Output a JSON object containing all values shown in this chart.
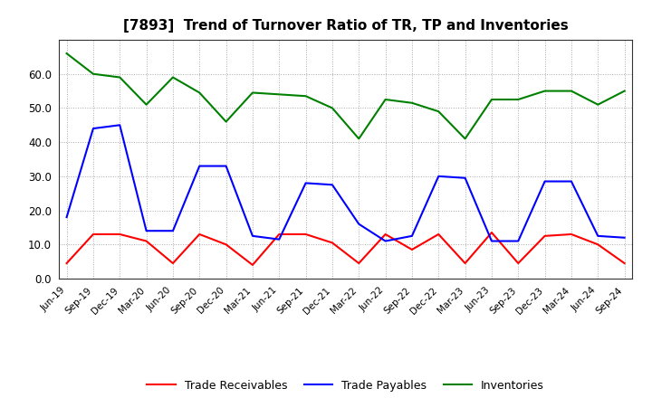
{
  "title": "[7893]  Trend of Turnover Ratio of TR, TP and Inventories",
  "title_fontsize": 11,
  "ylim": [
    0.0,
    70.0
  ],
  "yticks": [
    0.0,
    10.0,
    20.0,
    30.0,
    40.0,
    50.0,
    60.0
  ],
  "x_labels": [
    "Jun-19",
    "Sep-19",
    "Dec-19",
    "Mar-20",
    "Jun-20",
    "Sep-20",
    "Dec-20",
    "Mar-21",
    "Jun-21",
    "Sep-21",
    "Dec-21",
    "Mar-22",
    "Jun-22",
    "Sep-22",
    "Dec-22",
    "Mar-23",
    "Jun-23",
    "Sep-23",
    "Dec-23",
    "Mar-24",
    "Jun-24",
    "Sep-24"
  ],
  "trade_receivables": [
    4.5,
    13.0,
    13.0,
    11.0,
    4.5,
    13.0,
    10.0,
    4.0,
    13.0,
    13.0,
    10.5,
    4.5,
    13.0,
    8.5,
    13.0,
    4.5,
    13.5,
    4.5,
    12.5,
    13.0,
    10.0,
    4.5
  ],
  "trade_payables": [
    18.0,
    44.0,
    45.0,
    14.0,
    14.0,
    33.0,
    33.0,
    12.5,
    11.5,
    28.0,
    27.5,
    16.0,
    11.0,
    12.5,
    30.0,
    29.5,
    11.0,
    11.0,
    28.5,
    28.5,
    12.5,
    12.0
  ],
  "inventories": [
    66.0,
    60.0,
    59.0,
    51.0,
    59.0,
    54.5,
    46.0,
    54.5,
    54.0,
    53.5,
    50.0,
    41.0,
    52.5,
    51.5,
    49.0,
    41.0,
    52.5,
    52.5,
    55.0,
    55.0,
    51.0,
    55.0
  ],
  "tr_color": "#ff0000",
  "tp_color": "#0000ff",
  "inv_color": "#008000",
  "line_width": 1.5,
  "legend_labels": [
    "Trade Receivables",
    "Trade Payables",
    "Inventories"
  ],
  "background_color": "#ffffff",
  "grid_color": "#aaaaaa",
  "grid_linestyle": ":"
}
